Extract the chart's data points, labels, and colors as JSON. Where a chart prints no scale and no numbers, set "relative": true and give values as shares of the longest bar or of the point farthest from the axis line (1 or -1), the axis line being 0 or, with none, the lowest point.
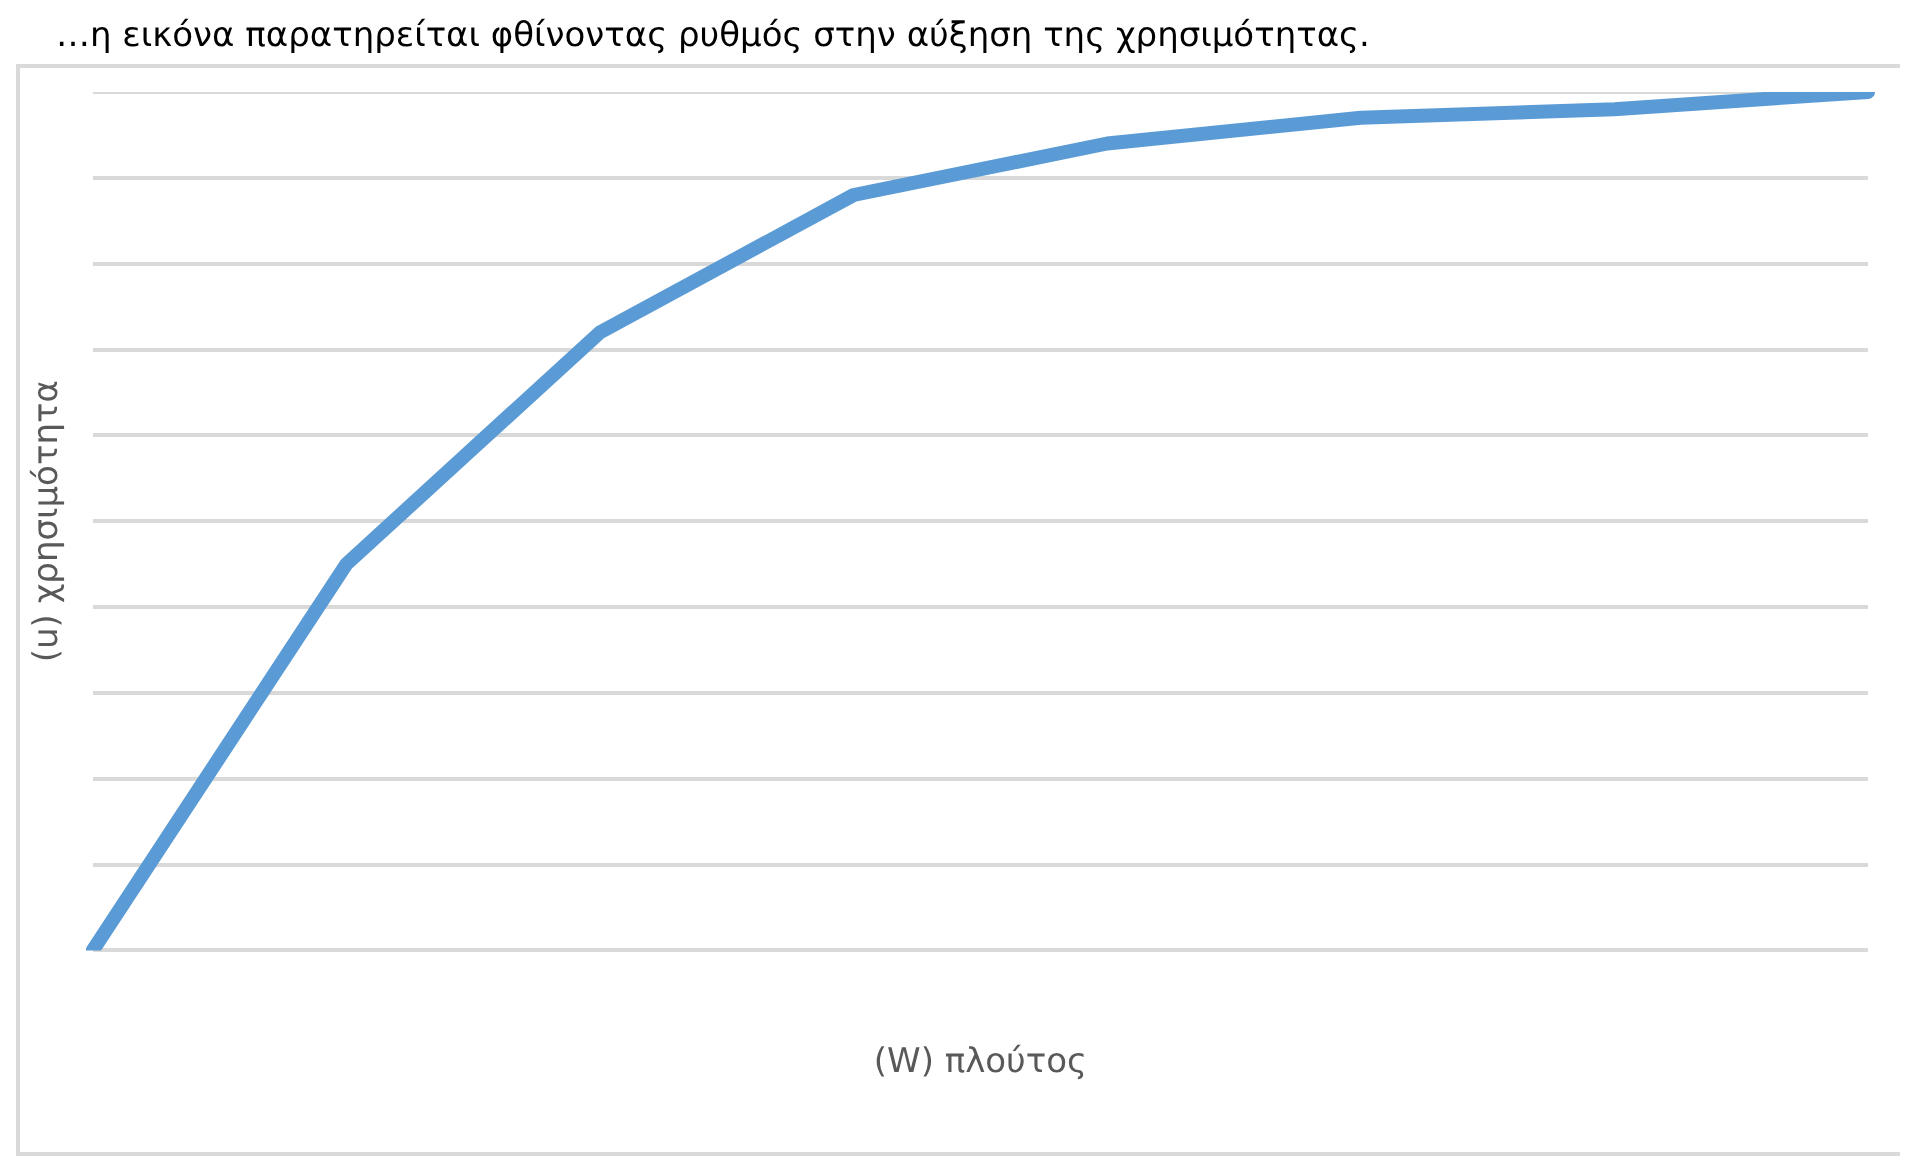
{
  "chart_data": {
    "type": "line",
    "relative": true,
    "xlabel": "(W) πλούτος",
    "ylabel": "(u) χρησιμότητα",
    "annotations": [
      "…η εικόνα παρατηρείται φθίνοντας ρυθμός στην αύξηση της χρησιμότητας."
    ],
    "categories": [
      null,
      null,
      null,
      null,
      null,
      null,
      null,
      null
    ],
    "series": [
      {
        "color": "#5b9bd5",
        "values": [
          0,
          0.45,
          0.72,
          0.88,
          0.94,
          0.97,
          0.98,
          1.0
        ]
      }
    ],
    "grid": "y",
    "legend": false,
    "marker": "none",
    "line_style": "solid"
  }
}
